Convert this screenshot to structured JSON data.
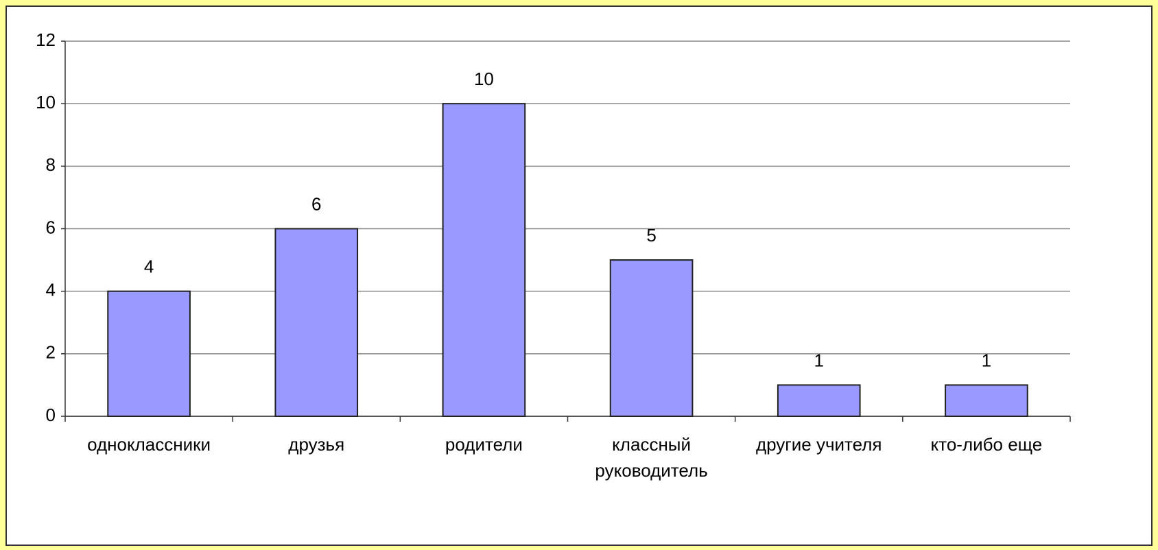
{
  "chart_data": {
    "type": "bar",
    "categories": [
      "одноклассники",
      "друзья",
      "родители",
      "классный руководитель",
      "другие учителя",
      "кто-либо еще"
    ],
    "values": [
      4,
      6,
      10,
      5,
      1,
      1
    ],
    "color": "#9999ff",
    "ylim": [
      0,
      12
    ],
    "yticks": [
      0,
      2,
      4,
      6,
      8,
      10,
      12
    ],
    "grid": true
  }
}
